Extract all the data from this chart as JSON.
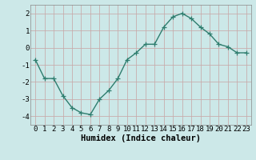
{
  "x": [
    0,
    1,
    2,
    3,
    4,
    5,
    6,
    7,
    8,
    9,
    10,
    11,
    12,
    13,
    14,
    15,
    16,
    17,
    18,
    19,
    20,
    21,
    22,
    23
  ],
  "y": [
    -0.7,
    -1.8,
    -1.8,
    -2.8,
    -3.5,
    -3.8,
    -3.9,
    -3.0,
    -2.5,
    -1.8,
    -0.7,
    -0.3,
    0.2,
    0.2,
    1.2,
    1.8,
    2.0,
    1.7,
    1.2,
    0.8,
    0.2,
    0.05,
    -0.3,
    -0.3
  ],
  "line_color": "#2e7d6e",
  "marker": "+",
  "marker_size": 4,
  "bg_color": "#cce8e8",
  "grid_major_color": "#b8d8d8",
  "grid_minor_color": "#d8ecec",
  "xlabel": "Humidex (Indice chaleur)",
  "xlim": [
    -0.5,
    23.5
  ],
  "ylim": [
    -4.5,
    2.5
  ],
  "yticks": [
    -4,
    -3,
    -2,
    -1,
    0,
    1,
    2
  ],
  "xticks": [
    0,
    1,
    2,
    3,
    4,
    5,
    6,
    7,
    8,
    9,
    10,
    11,
    12,
    13,
    14,
    15,
    16,
    17,
    18,
    19,
    20,
    21,
    22,
    23
  ],
  "tick_fontsize": 6.5,
  "xlabel_fontsize": 7.5,
  "linewidth": 1.0
}
